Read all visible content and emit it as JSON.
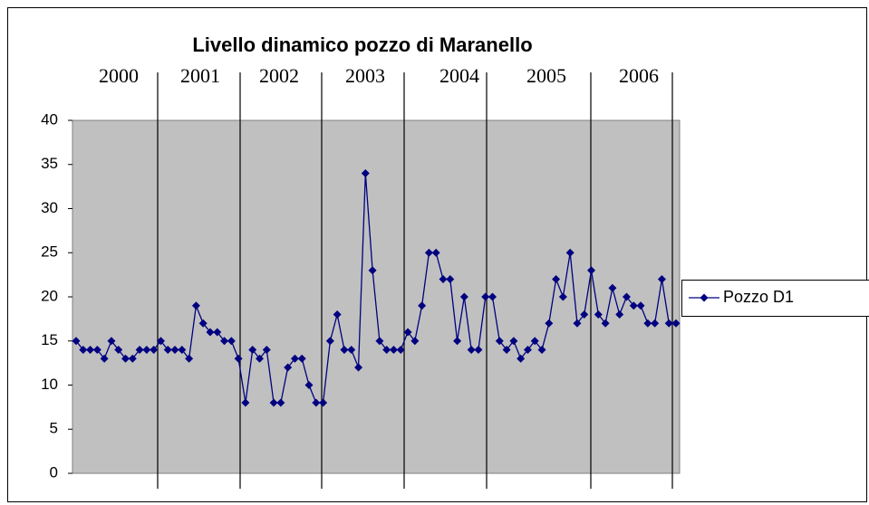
{
  "chart_data": {
    "type": "line",
    "title": "Livello dinamico pozzo di Maranello",
    "year_labels": [
      "2000",
      "2001",
      "2002",
      "2003",
      "2004",
      "2005",
      "2006"
    ],
    "series": [
      {
        "name": "Pozzo D1",
        "color": "#000080",
        "values": [
          15,
          14,
          14,
          14,
          13,
          15,
          14,
          13,
          13,
          14,
          14,
          14,
          15,
          14,
          14,
          14,
          13,
          19,
          17,
          16,
          16,
          15,
          15,
          13,
          8,
          14,
          13,
          14,
          8,
          8,
          12,
          13,
          13,
          10,
          8,
          8,
          15,
          18,
          14,
          14,
          12,
          34,
          23,
          15,
          14,
          14,
          14,
          16,
          15,
          19,
          25,
          25,
          22,
          22,
          15,
          20,
          14,
          14,
          20,
          20,
          15,
          14,
          15,
          13,
          14,
          15,
          14,
          17,
          22,
          20,
          25,
          17,
          18,
          23,
          18,
          17,
          21,
          18,
          20,
          19,
          19,
          17,
          17,
          22,
          17,
          17
        ]
      }
    ],
    "ylim": [
      0,
      40
    ],
    "yticks": [
      0,
      5,
      10,
      15,
      20,
      25,
      30,
      35,
      40
    ],
    "plot_background": "#c0c0c0",
    "legend": "right"
  }
}
